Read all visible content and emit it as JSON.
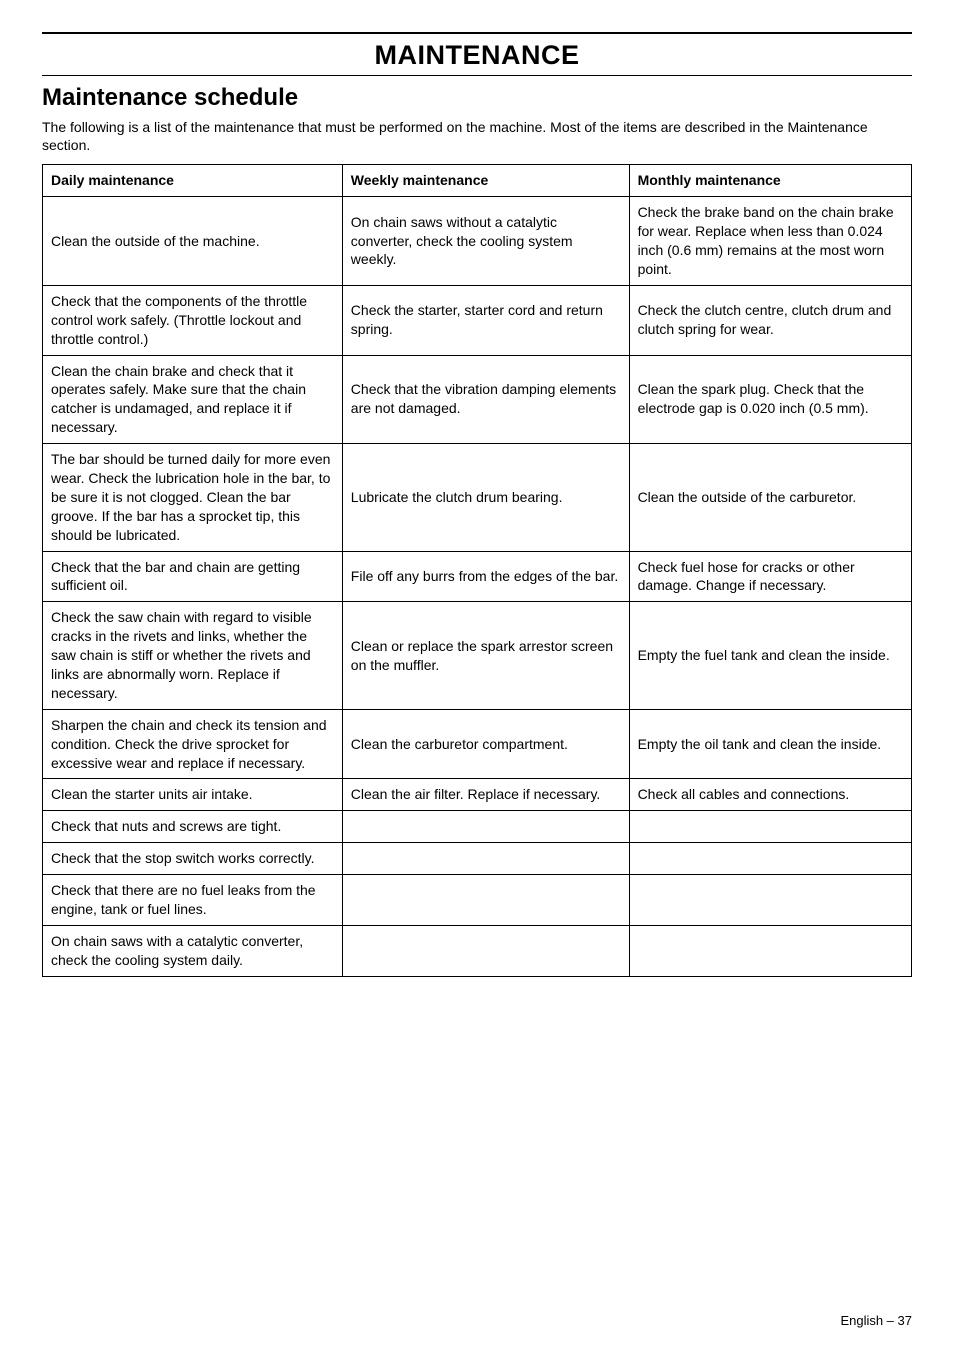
{
  "page_title": "MAINTENANCE",
  "subheading": "Maintenance schedule",
  "intro": "The following is a list of the maintenance that must be performed on the machine. Most of the items are described in the Maintenance section.",
  "table": {
    "columns": [
      "Daily maintenance",
      "Weekly maintenance",
      "Monthly maintenance"
    ],
    "rows": [
      [
        "Clean the outside of the machine.",
        "On chain saws without a catalytic converter, check the cooling system weekly.",
        "Check the brake band on the chain brake for wear. Replace when less than 0.024 inch (0.6 mm) remains at the most worn point."
      ],
      [
        "Check that the components of the throttle control work safely. (Throttle lockout and throttle control.)",
        "Check the starter, starter cord and return spring.",
        "Check the clutch centre, clutch drum and clutch spring for wear."
      ],
      [
        "Clean the chain brake and check that it operates safely. Make sure that the chain catcher is undamaged, and replace it if necessary.",
        "Check that the vibration damping elements are not damaged.",
        "Clean the spark plug. Check that the electrode gap is 0.020 inch (0.5 mm)."
      ],
      [
        "The bar should be turned daily for more even wear. Check the lubrication hole in the bar, to be sure it is not clogged. Clean the bar groove. If the bar has a sprocket tip, this should be lubricated.",
        "Lubricate the clutch drum bearing.",
        "Clean the outside of the carburetor."
      ],
      [
        "Check that the bar and chain are getting sufficient oil.",
        "File off any burrs from the edges of the bar.",
        "Check fuel hose for cracks or other damage. Change if necessary."
      ],
      [
        "Check the saw chain with regard to visible cracks in the rivets and links, whether the saw chain is stiff or whether the rivets and links are abnormally worn. Replace if necessary.",
        "Clean or replace the spark arrestor screen on the muffler.",
        "Empty the fuel tank and clean the inside."
      ],
      [
        "Sharpen the chain and check its tension and condition. Check the drive sprocket for excessive wear and replace if necessary.",
        "Clean the carburetor compartment.",
        "Empty the oil tank and clean the inside."
      ],
      [
        "Clean the starter units air intake.",
        "Clean the air filter. Replace if necessary.",
        "Check all cables and connections."
      ],
      [
        "Check that nuts and screws are tight.",
        "",
        ""
      ],
      [
        "Check that the stop switch works correctly.",
        "",
        ""
      ],
      [
        "Check that there are no fuel leaks from the engine, tank or fuel lines.",
        "",
        ""
      ],
      [
        "On chain saws with a catalytic converter, check the cooling system daily.",
        "",
        ""
      ]
    ],
    "col_widths": [
      "34.5%",
      "33%",
      "32.5%"
    ],
    "border_color": "#000000",
    "font_size": 14,
    "header_font_weight": "bold"
  },
  "footer": "English – 37",
  "colors": {
    "background": "#ffffff",
    "text": "#000000",
    "rule": "#000000"
  },
  "typography": {
    "title_size": 27,
    "subheading_size": 24,
    "body_size": 14,
    "footer_size": 13,
    "font_family": "Arial, Helvetica, sans-serif"
  }
}
